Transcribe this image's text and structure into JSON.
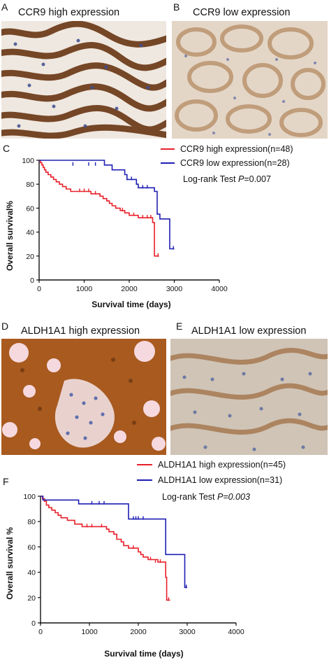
{
  "panels": {
    "A": {
      "letter": "A",
      "title": "CCR9 high expression"
    },
    "B": {
      "letter": "B",
      "title": "CCR9 low expression"
    },
    "C": {
      "letter": "C"
    },
    "D": {
      "letter": "D",
      "title": "ALDH1A1 high expression"
    },
    "E": {
      "letter": "E",
      "title": "ALDH1A1 low expression"
    },
    "F": {
      "letter": "F"
    }
  },
  "colors": {
    "high": "#e8202a",
    "low": "#1f1fb4",
    "stain_brown": "#8a4a1e",
    "stain_blue": "#4a5fa8"
  },
  "chart_data": [
    {
      "type": "line",
      "xlabel": "Survival time (days)",
      "ylabel": "Overall survival%",
      "xlim": [
        0,
        4000
      ],
      "ylim": [
        0,
        100
      ],
      "xticks": [
        "0",
        "1000",
        "2000",
        "3000",
        "4000"
      ],
      "yticks": [
        "0",
        "20",
        "40",
        "60",
        "80",
        "100"
      ],
      "annotation": {
        "prefix": "Log-rank Test ",
        "p": "P",
        "value": "=0.007"
      },
      "series": [
        {
          "name": "CCR9 high expression(n=48)",
          "key": "high",
          "steps": [
            [
              0,
              100
            ],
            [
              30,
              98
            ],
            [
              60,
              96
            ],
            [
              90,
              94
            ],
            [
              120,
              92
            ],
            [
              150,
              90
            ],
            [
              200,
              88
            ],
            [
              260,
              86
            ],
            [
              320,
              84
            ],
            [
              380,
              82
            ],
            [
              450,
              80
            ],
            [
              520,
              78
            ],
            [
              600,
              76
            ],
            [
              700,
              74
            ],
            [
              1150,
              72
            ],
            [
              1350,
              70
            ],
            [
              1420,
              68
            ],
            [
              1500,
              66
            ],
            [
              1560,
              64
            ],
            [
              1620,
              62
            ],
            [
              1700,
              60
            ],
            [
              1800,
              58
            ],
            [
              1900,
              56
            ],
            [
              2000,
              54
            ],
            [
              2200,
              52
            ],
            [
              2520,
              48
            ],
            [
              2560,
              20
            ],
            [
              2660,
              20
            ]
          ],
          "censored": [
            [
              900,
              74
            ],
            [
              1000,
              74
            ],
            [
              1100,
              74
            ],
            [
              1250,
              72
            ],
            [
              1850,
              58
            ],
            [
              2100,
              54
            ],
            [
              2300,
              52
            ],
            [
              2400,
              52
            ],
            [
              2480,
              52
            ],
            [
              2640,
              20
            ]
          ]
        },
        {
          "name": "CCR9 low expression(n=28)",
          "key": "low",
          "steps": [
            [
              0,
              100
            ],
            [
              1450,
              96
            ],
            [
              1620,
              92
            ],
            [
              1900,
              88
            ],
            [
              1950,
              84
            ],
            [
              2160,
              80
            ],
            [
              2200,
              77
            ],
            [
              2560,
              74
            ],
            [
              2620,
              55
            ],
            [
              2680,
              51
            ],
            [
              2900,
              26
            ],
            [
              3000,
              26
            ]
          ],
          "censored": [
            [
              750,
              96
            ],
            [
              1100,
              96
            ],
            [
              1250,
              96
            ],
            [
              1950,
              84
            ],
            [
              2050,
              84
            ],
            [
              2300,
              77
            ],
            [
              2400,
              77
            ],
            [
              2980,
              26
            ]
          ]
        }
      ]
    },
    {
      "type": "line",
      "xlabel": "Survival time (days)",
      "ylabel": "Overall survival %",
      "xlim": [
        0,
        4000
      ],
      "ylim": [
        0,
        100
      ],
      "xticks": [
        "0",
        "1000",
        "2000",
        "3000",
        "4000"
      ],
      "yticks": [
        "0",
        "20",
        "40",
        "60",
        "80",
        "100"
      ],
      "annotation": {
        "prefix": "Log-rank Test ",
        "p": "P",
        "value": "=0.003"
      },
      "series": [
        {
          "name": "ALDH1A1 high expression(n=45)",
          "key": "high",
          "steps": [
            [
              0,
              100
            ],
            [
              40,
              98
            ],
            [
              80,
              96
            ],
            [
              120,
              93
            ],
            [
              170,
              91
            ],
            [
              230,
              89
            ],
            [
              300,
              87
            ],
            [
              360,
              85
            ],
            [
              420,
              83
            ],
            [
              550,
              81
            ],
            [
              700,
              78
            ],
            [
              850,
              76
            ],
            [
              1350,
              74
            ],
            [
              1400,
              72
            ],
            [
              1500,
              70
            ],
            [
              1560,
              66
            ],
            [
              1650,
              64
            ],
            [
              1700,
              61
            ],
            [
              1800,
              59
            ],
            [
              2000,
              56
            ],
            [
              2050,
              54
            ],
            [
              2100,
              52
            ],
            [
              2200,
              50
            ],
            [
              2400,
              48
            ],
            [
              2560,
              36
            ],
            [
              2580,
              18
            ],
            [
              2650,
              18
            ]
          ],
          "censored": [
            [
              950,
              76
            ],
            [
              1050,
              76
            ],
            [
              1250,
              76
            ],
            [
              1900,
              59
            ],
            [
              2250,
              50
            ],
            [
              2350,
              48
            ],
            [
              2450,
              48
            ],
            [
              2620,
              18
            ]
          ]
        },
        {
          "name": "ALDH1A1 low expression(n=31)",
          "key": "low",
          "steps": [
            [
              0,
              100
            ],
            [
              50,
              97
            ],
            [
              780,
              94
            ],
            [
              1800,
              82
            ],
            [
              2560,
              54
            ],
            [
              2950,
              28
            ],
            [
              3000,
              28
            ]
          ],
          "censored": [
            [
              1050,
              94
            ],
            [
              1200,
              94
            ],
            [
              1300,
              94
            ],
            [
              1900,
              82
            ],
            [
              1950,
              82
            ],
            [
              2000,
              82
            ],
            [
              2100,
              82
            ],
            [
              2980,
              28
            ]
          ]
        }
      ]
    }
  ]
}
